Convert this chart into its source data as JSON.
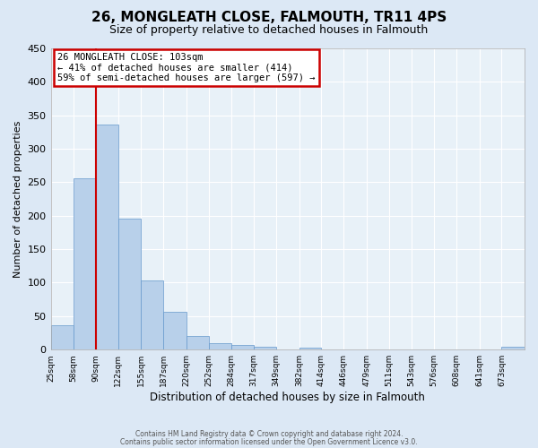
{
  "title": "26, MONGLEATH CLOSE, FALMOUTH, TR11 4PS",
  "subtitle": "Size of property relative to detached houses in Falmouth",
  "xlabel": "Distribution of detached houses by size in Falmouth",
  "ylabel": "Number of detached properties",
  "bar_color": "#b8d0ea",
  "bar_edge_color": "#6699cc",
  "bin_labels": [
    "25sqm",
    "58sqm",
    "90sqm",
    "122sqm",
    "155sqm",
    "187sqm",
    "220sqm",
    "252sqm",
    "284sqm",
    "317sqm",
    "349sqm",
    "382sqm",
    "414sqm",
    "446sqm",
    "479sqm",
    "511sqm",
    "543sqm",
    "576sqm",
    "608sqm",
    "641sqm",
    "673sqm"
  ],
  "bar_values": [
    36,
    256,
    336,
    196,
    103,
    57,
    20,
    10,
    7,
    4,
    0,
    3,
    0,
    0,
    0,
    0,
    0,
    0,
    0,
    0,
    4
  ],
  "ylim": [
    0,
    450
  ],
  "yticks": [
    0,
    50,
    100,
    150,
    200,
    250,
    300,
    350,
    400,
    450
  ],
  "vline_color": "#cc0000",
  "annotation_title": "26 MONGLEATH CLOSE: 103sqm",
  "annotation_line1": "← 41% of detached houses are smaller (414)",
  "annotation_line2": "59% of semi-detached houses are larger (597) →",
  "annotation_box_color": "#ffffff",
  "annotation_box_edge": "#cc0000",
  "footer1": "Contains HM Land Registry data © Crown copyright and database right 2024.",
  "footer2": "Contains public sector information licensed under the Open Government Licence v3.0.",
  "background_color": "#dce8f5",
  "plot_bg_color": "#e8f1f8",
  "grid_color": "#ffffff",
  "bin_edges": [
    25,
    58,
    90,
    122,
    155,
    187,
    220,
    252,
    284,
    317,
    349,
    382,
    414,
    446,
    479,
    511,
    543,
    576,
    608,
    641,
    673,
    706
  ],
  "vline_x_bin_index": 2
}
